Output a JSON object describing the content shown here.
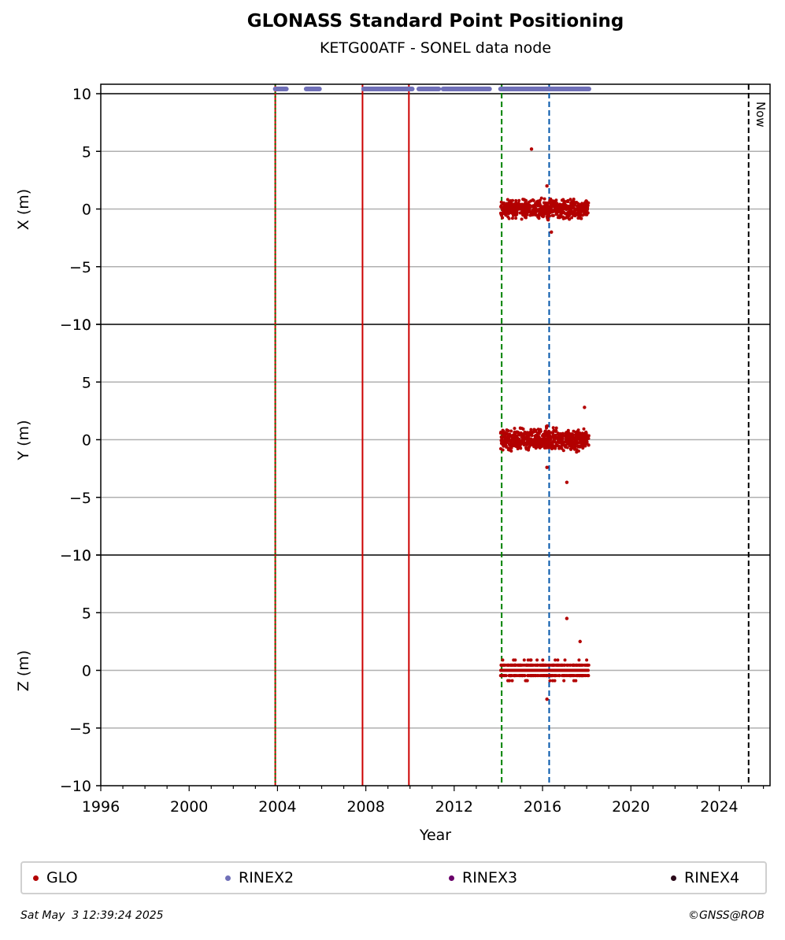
{
  "chart_data": {
    "type": "scatter",
    "title": "GLONASS Standard Point Positioning",
    "subtitle": "KETG00ATF - SONEL data node",
    "xlabel": "Year",
    "xlim": [
      1996,
      2026.3
    ],
    "x_ticks": [
      1996,
      2000,
      2004,
      2008,
      2012,
      2016,
      2020,
      2024
    ],
    "grid": "horizontal",
    "legend_position": "bottom",
    "panels": [
      {
        "ylabel": "X (m)",
        "ylim": [
          -10,
          10
        ],
        "y_ticks": [
          10,
          5,
          0,
          -5,
          -10
        ]
      },
      {
        "ylabel": "Y (m)",
        "ylim": [
          -10,
          10
        ],
        "y_ticks": [
          10,
          5,
          0,
          -5,
          -10
        ]
      },
      {
        "ylabel": "Z (m)",
        "ylim": [
          -10,
          10
        ],
        "y_ticks": [
          10,
          5,
          0,
          -5,
          -10
        ]
      }
    ],
    "series": [
      {
        "name": "GLO",
        "color": "#b30000",
        "x_range": [
          2014.1,
          2018.1
        ],
        "panels_y_spread": {
          "X": [
            -2.0,
            2.0
          ],
          "Y": [
            -2.5,
            2.5
          ],
          "Z": [
            -1.5,
            2.0
          ]
        },
        "outliers": {
          "X": [
            [
              2015.5,
              5.2
            ],
            [
              2016.2,
              2.0
            ],
            [
              2016.4,
              -2.0
            ]
          ],
          "Y": [
            [
              2017.9,
              2.8
            ],
            [
              2017.1,
              -3.7
            ],
            [
              2016.2,
              -2.4
            ]
          ],
          "Z": [
            [
              2017.1,
              4.5
            ],
            [
              2017.7,
              2.5
            ],
            [
              2016.2,
              -2.5
            ]
          ]
        }
      },
      {
        "name": "RINEX2",
        "color": "#7070b8",
        "segments": [
          [
            2003.9,
            2004.4
          ],
          [
            2005.3,
            2005.9
          ],
          [
            2007.9,
            2010.1
          ],
          [
            2010.4,
            2011.3
          ],
          [
            2011.5,
            2013.6
          ],
          [
            2014.1,
            2018.1
          ]
        ]
      },
      {
        "name": "RINEX3",
        "color": "#6a006a",
        "segments": []
      },
      {
        "name": "RINEX4",
        "color": "#2a0a1a",
        "segments": []
      }
    ],
    "vertical_lines": [
      {
        "x": 2003.9,
        "color": "#cc0000",
        "style": "solid"
      },
      {
        "x": 2003.9,
        "color": "#008000",
        "style": "dotted"
      },
      {
        "x": 2007.85,
        "color": "#cc0000",
        "style": "solid"
      },
      {
        "x": 2009.95,
        "color": "#cc0000",
        "style": "solid"
      },
      {
        "x": 2014.15,
        "color": "#008000",
        "style": "dashed"
      },
      {
        "x": 2016.3,
        "color": "#0055aa",
        "style": "dashed"
      },
      {
        "x": 2025.33,
        "color": "#000000",
        "style": "dashed",
        "label": "Now"
      }
    ]
  },
  "legend": [
    {
      "label": "GLO",
      "color": "#b30000"
    },
    {
      "label": "RINEX2",
      "color": "#7070b8"
    },
    {
      "label": "RINEX3",
      "color": "#6a006a"
    },
    {
      "label": "RINEX4",
      "color": "#2a0a1a"
    }
  ],
  "footer": {
    "timestamp": "Sat May  3 12:39:24 2025",
    "credit": "©GNSS@ROB"
  }
}
